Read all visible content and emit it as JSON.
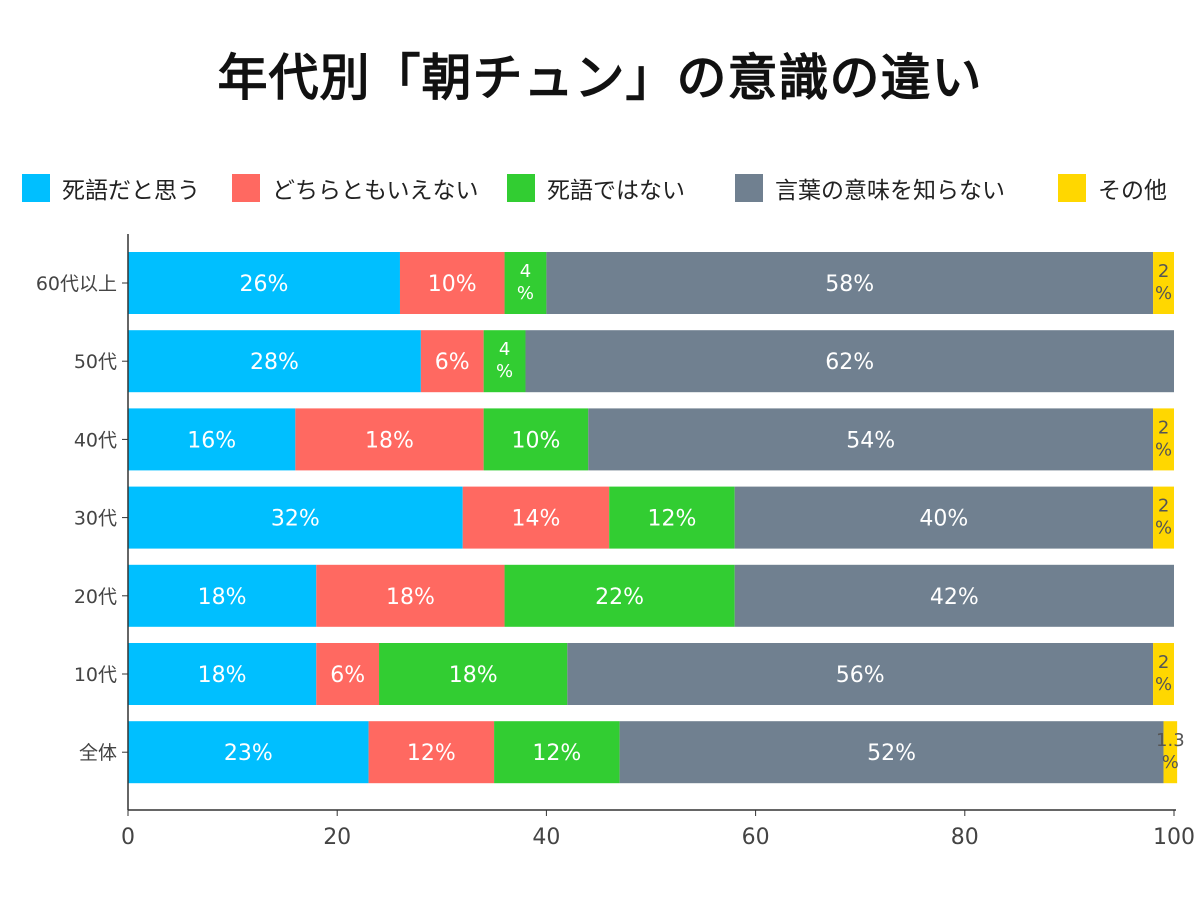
{
  "chart_data": {
    "type": "bar",
    "orientation": "horizontal",
    "stacked": true,
    "title": "年代別「朝チュン」の意識の違い",
    "categories": [
      "60代以上",
      "50代",
      "40代",
      "30代",
      "20代",
      "10代",
      "全体"
    ],
    "series": [
      {
        "name": "死語だと思う",
        "color": "#00BFFF",
        "values": [
          26,
          28,
          16,
          32,
          18,
          18,
          23
        ],
        "labels": [
          "26%",
          "28%",
          "16%",
          "32%",
          "18%",
          "18%",
          "23%"
        ]
      },
      {
        "name": "どちらともいえない",
        "color": "#FF6961",
        "values": [
          10,
          6,
          18,
          14,
          18,
          6,
          12
        ],
        "labels": [
          "10%",
          "6%",
          "18%",
          "14%",
          "18%",
          "6%",
          "12%"
        ]
      },
      {
        "name": "死語ではない",
        "color": "#32CD32",
        "values": [
          4,
          4,
          10,
          12,
          22,
          18,
          12
        ],
        "labels": [
          "4%",
          "4%",
          "10%",
          "12%",
          "22%",
          "18%",
          "12%"
        ]
      },
      {
        "name": "言葉の意味を知らない",
        "color": "#708090",
        "values": [
          58,
          62,
          54,
          40,
          42,
          56,
          52
        ],
        "labels": [
          "58%",
          "62%",
          "54%",
          "40%",
          "42%",
          "56%",
          "52%"
        ]
      },
      {
        "name": "その他",
        "color": "#FFD700",
        "values": [
          2,
          0,
          2,
          2,
          0,
          2,
          1.3
        ],
        "labels": [
          "2%",
          "",
          "2%",
          "2%",
          "",
          "2%",
          "1.3%"
        ]
      }
    ],
    "xlim": [
      0,
      100
    ],
    "xticks": [
      "0",
      "20",
      "40",
      "60",
      "80",
      "100"
    ],
    "legend_position": "top",
    "grid": false
  }
}
